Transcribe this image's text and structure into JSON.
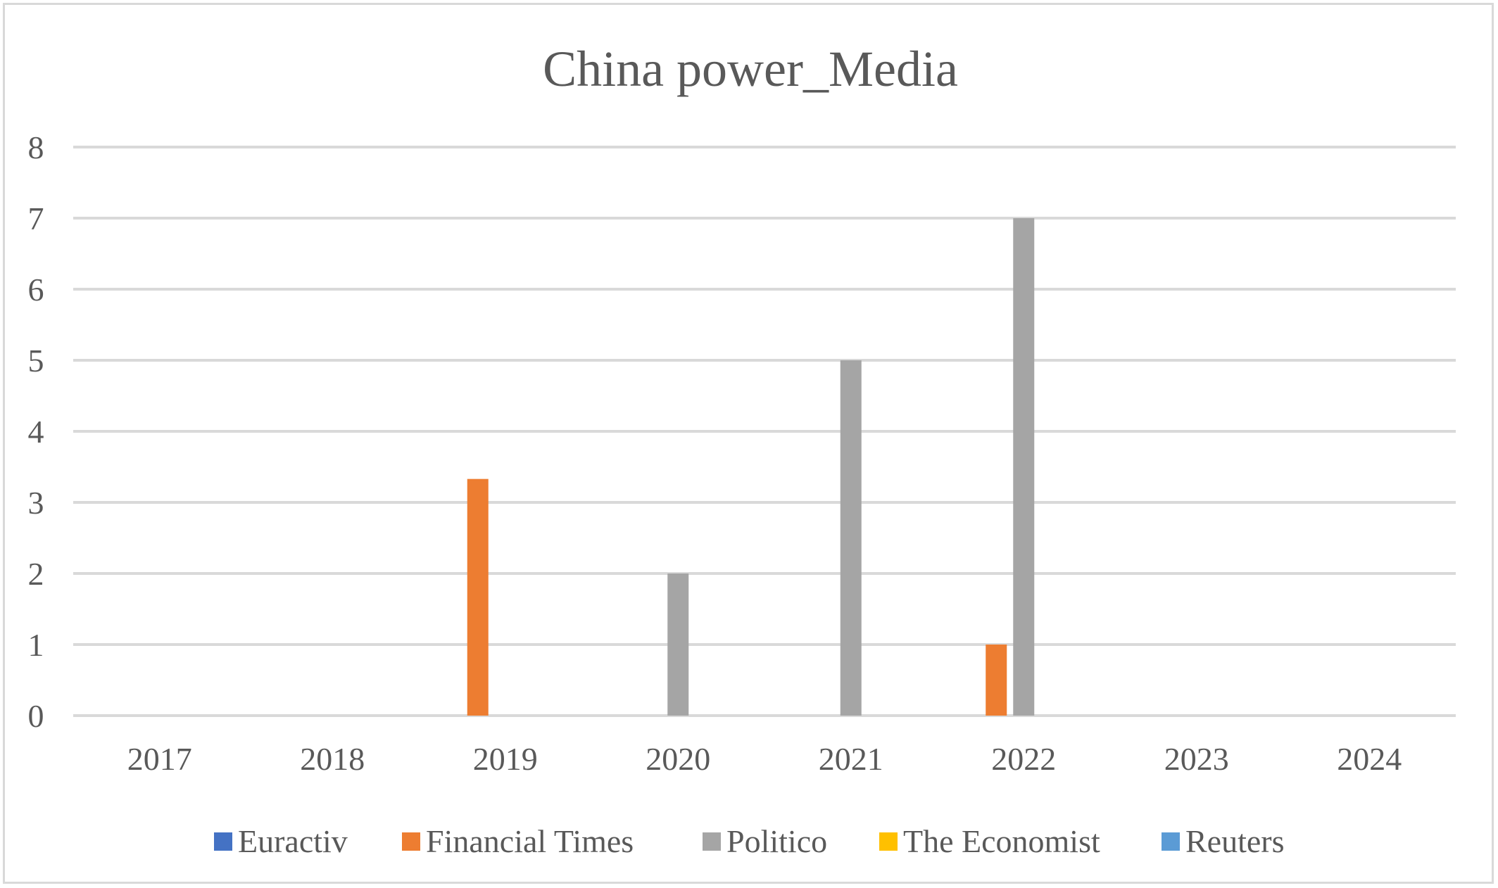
{
  "chart_data": {
    "type": "bar",
    "title": "China power_Media",
    "xlabel": "",
    "ylabel": "",
    "categories": [
      "2017",
      "2018",
      "2019",
      "2020",
      "2021",
      "2022",
      "2023",
      "2024"
    ],
    "ylim": [
      0,
      8
    ],
    "yticks": [
      "0",
      "1",
      "2",
      "3",
      "4",
      "5",
      "6",
      "7",
      "8"
    ],
    "grid": true,
    "legend_position": "bottom",
    "series": [
      {
        "name": "Euractiv",
        "color": "#4472c4",
        "values": [
          0,
          0,
          0,
          0,
          0,
          0,
          0,
          0
        ]
      },
      {
        "name": "Financial Times",
        "color": "#ed7d31",
        "values": [
          0,
          0,
          3.33,
          0,
          0,
          1,
          0,
          0
        ]
      },
      {
        "name": "Politico",
        "color": "#a5a5a5",
        "values": [
          0,
          0,
          0,
          2,
          5,
          7,
          0,
          0
        ]
      },
      {
        "name": "The Economist",
        "color": "#ffc000",
        "values": [
          0,
          0,
          0,
          0,
          0,
          0,
          0,
          0
        ]
      },
      {
        "name": "Reuters",
        "color": "#5b9bd5",
        "values": [
          0,
          0,
          0,
          0,
          0,
          0,
          0,
          0
        ]
      }
    ]
  }
}
